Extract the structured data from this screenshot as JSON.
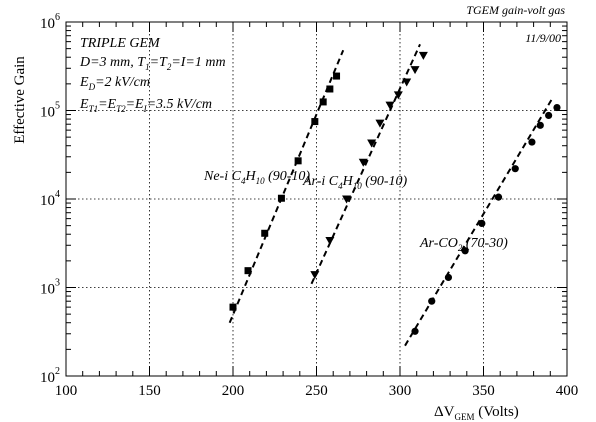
{
  "chart_data": {
    "type": "scatter",
    "corner_title": "TGEM gain-volt gas",
    "date": "11/9/00",
    "xlabel": "ΔV",
    "xlabel_sub": "GEM",
    "xlabel_units": " (Volts)",
    "ylabel": "Effective Gain",
    "xlim": [
      100,
      400
    ],
    "ylim": [
      100,
      1000000
    ],
    "ylog": true,
    "grid": "dotted",
    "x_ticks": [
      100,
      150,
      200,
      250,
      300,
      350,
      400
    ],
    "x_tick_labels": [
      "100",
      "150",
      "200",
      "250",
      "300",
      "350",
      "400"
    ],
    "y_tick_base": "10",
    "y_tick_exps": [
      "2",
      "3",
      "4",
      "5",
      "6"
    ],
    "info": [
      {
        "parts": [
          {
            "t": "TRIPLE GEM"
          }
        ]
      },
      {
        "parts": [
          {
            "t": "D=3 mm, T"
          },
          {
            "t": "1",
            "sub": true
          },
          {
            "t": "=T"
          },
          {
            "t": "2",
            "sub": true
          },
          {
            "t": "=I=1 mm"
          }
        ]
      },
      {
        "parts": [
          {
            "t": "E"
          },
          {
            "t": "D",
            "sub": true
          },
          {
            "t": "=2 kV/cm"
          }
        ]
      },
      {
        "parts": [
          {
            "t": "E"
          },
          {
            "t": "T1",
            "sub": true
          },
          {
            "t": "=E"
          },
          {
            "t": "T2",
            "sub": true
          },
          {
            "t": "=E"
          },
          {
            "t": "I",
            "sub": true
          },
          {
            "t": "=3.5 kV/cm"
          }
        ]
      }
    ],
    "series": [
      {
        "label_parts": [
          {
            "t": "Ne-i C"
          },
          {
            "t": "4",
            "sub": true
          },
          {
            "t": "H"
          },
          {
            "t": "10",
            "sub": true
          },
          {
            "t": " (90-10)"
          }
        ],
        "marker": "square",
        "x": [
          200,
          209,
          219,
          229,
          239,
          249,
          254,
          258,
          262
        ],
        "y": [
          600,
          1550,
          4100,
          10200,
          27000,
          75000,
          125000,
          175000,
          245000
        ],
        "fit": {
          "x": [
            198,
            266
          ],
          "y": [
            400,
            480000
          ]
        }
      },
      {
        "label_parts": [
          {
            "t": "Ar-i C"
          },
          {
            "t": "4",
            "sub": true
          },
          {
            "t": "H"
          },
          {
            "t": "10",
            "sub": true
          },
          {
            "t": " (90-10)"
          }
        ],
        "marker": "triangle-down",
        "x": [
          249,
          258,
          268,
          278,
          283,
          288,
          294,
          299,
          304,
          309,
          314
        ],
        "y": [
          1400,
          3400,
          10000,
          26000,
          43000,
          72000,
          115000,
          150000,
          210000,
          290000,
          420000
        ],
        "fit": {
          "x": [
            247,
            312
          ],
          "y": [
            1100,
            560000
          ]
        }
      },
      {
        "label_parts": [
          {
            "t": "Ar-CO"
          },
          {
            "t": "2",
            "sub": true
          },
          {
            "t": " (70-30)"
          }
        ],
        "marker": "circle",
        "x": [
          309,
          319,
          329,
          339,
          349,
          359,
          369,
          379,
          384,
          389,
          394
        ],
        "y": [
          320,
          700,
          1300,
          2600,
          5300,
          10500,
          22000,
          44000,
          68000,
          88000,
          108000
        ],
        "fit": {
          "x": [
            303,
            391
          ],
          "y": [
            220,
            135000
          ]
        }
      }
    ]
  }
}
